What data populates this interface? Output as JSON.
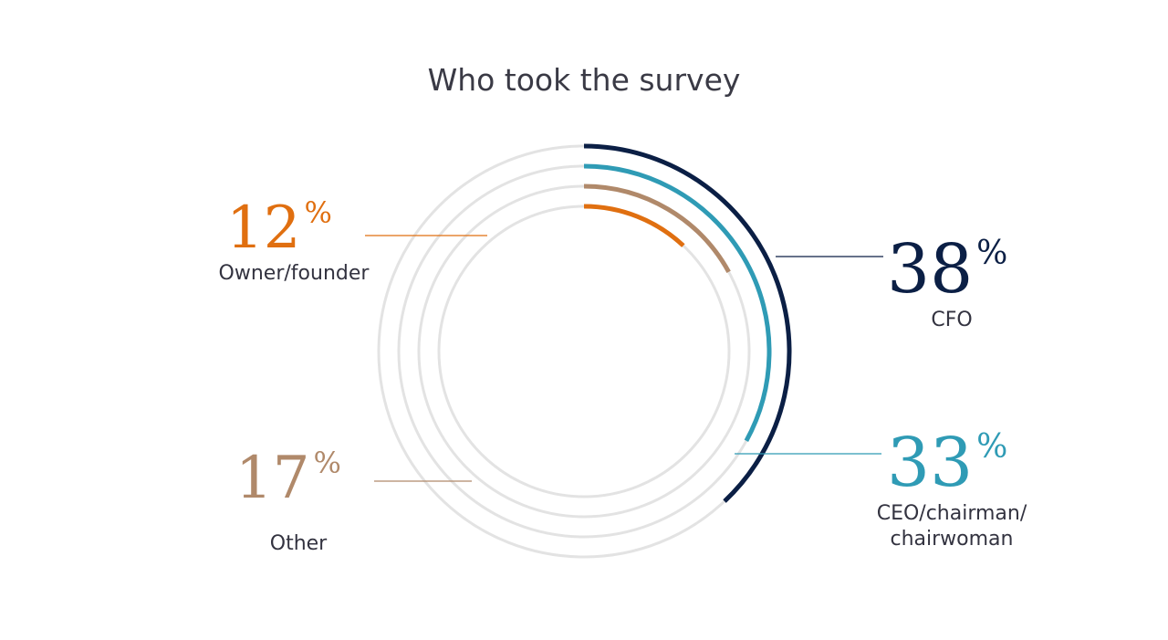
{
  "chart_data": {
    "type": "radial-bar",
    "title": "Who took the survey",
    "percent_symbol": "%",
    "track_color": "#e3e3e3",
    "series": [
      {
        "name": "CFO",
        "value": 38,
        "color": "#0b1f45"
      },
      {
        "name": "CEO/chairman/ chairwoman",
        "label_lines": [
          "CEO/chairman/",
          "chairwoman"
        ],
        "value": 33,
        "color": "#2f9bb5"
      },
      {
        "name": "Other",
        "value": 17,
        "color": "#b0896a"
      },
      {
        "name": "Owner/founder",
        "value": 12,
        "color": "#e06f10"
      }
    ]
  }
}
